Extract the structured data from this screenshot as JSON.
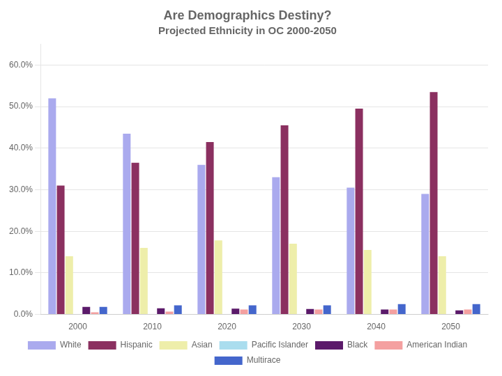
{
  "chart_data": {
    "type": "bar",
    "title": "Are Demographics Destiny?",
    "subtitle": "Projected Ethnicity in OC 2000-2050",
    "categories": [
      "2000",
      "2010",
      "2020",
      "2030",
      "2040",
      "2050"
    ],
    "series": [
      {
        "name": "White",
        "color": "#AAAAEE",
        "values": [
          0.52,
          0.435,
          0.36,
          0.33,
          0.305,
          0.29
        ]
      },
      {
        "name": "Hispanic",
        "color": "#8B3060",
        "values": [
          0.31,
          0.365,
          0.415,
          0.455,
          0.495,
          0.535
        ]
      },
      {
        "name": "Asian",
        "color": "#EEEEAA",
        "values": [
          0.14,
          0.16,
          0.178,
          0.17,
          0.155,
          0.14
        ]
      },
      {
        "name": "Pacific Islander",
        "color": "#AADDEE",
        "values": [
          0.0,
          0.0,
          0.0,
          0.0,
          0.0,
          0.0
        ]
      },
      {
        "name": "Black",
        "color": "#5B1A6A",
        "values": [
          0.018,
          0.015,
          0.014,
          0.013,
          0.012,
          0.01
        ]
      },
      {
        "name": "American Indian",
        "color": "#F4A0A0",
        "values": [
          0.005,
          0.007,
          0.012,
          0.012,
          0.012,
          0.012
        ]
      },
      {
        "name": "Multirace",
        "color": "#4466CC",
        "values": [
          0.018,
          0.022,
          0.022,
          0.022,
          0.025,
          0.025
        ]
      }
    ],
    "ylim": [
      0,
      0.65
    ],
    "yticks": [
      {
        "value": 0.0,
        "label": "0.0%"
      },
      {
        "value": 0.1,
        "label": "10.0%"
      },
      {
        "value": 0.2,
        "label": "20.0%"
      },
      {
        "value": 0.3,
        "label": "30.0%"
      },
      {
        "value": 0.4,
        "label": "40.0%"
      },
      {
        "value": 0.5,
        "label": "50.0%"
      },
      {
        "value": 0.6,
        "label": "60.0%"
      }
    ],
    "grid": true,
    "legend": "bottom"
  }
}
